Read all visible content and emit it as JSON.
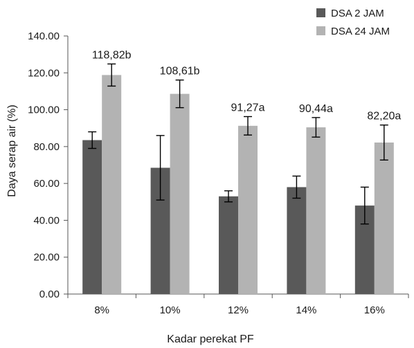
{
  "chart_data": {
    "type": "bar",
    "title": "",
    "xlabel": "Kadar perekat PF",
    "ylabel": "Daya serap air (%)",
    "ylim": [
      0,
      140
    ],
    "yticks": [
      "0.00",
      "20.00",
      "40.00",
      "60.00",
      "80.00",
      "100.00",
      "120.00",
      "140.00"
    ],
    "categories": [
      "8%",
      "10%",
      "12%",
      "14%",
      "16%"
    ],
    "grid": false,
    "legend_position": "top-right",
    "series": [
      {
        "name": "DSA 2 JAM",
        "color": "#595959",
        "values": [
          83.5,
          68.5,
          53.0,
          58.0,
          48.0
        ],
        "error": [
          4.5,
          17.5,
          3.0,
          6.0,
          10.0
        ]
      },
      {
        "name": "DSA 24 JAM",
        "color": "#b3b3b3",
        "values": [
          118.82,
          108.61,
          91.27,
          90.44,
          82.2
        ],
        "error": [
          6.0,
          7.5,
          5.0,
          5.3,
          9.5
        ],
        "labels": [
          "118,82b",
          "108,61b",
          "91,27a",
          "90,44a",
          "82,20a"
        ]
      }
    ]
  }
}
